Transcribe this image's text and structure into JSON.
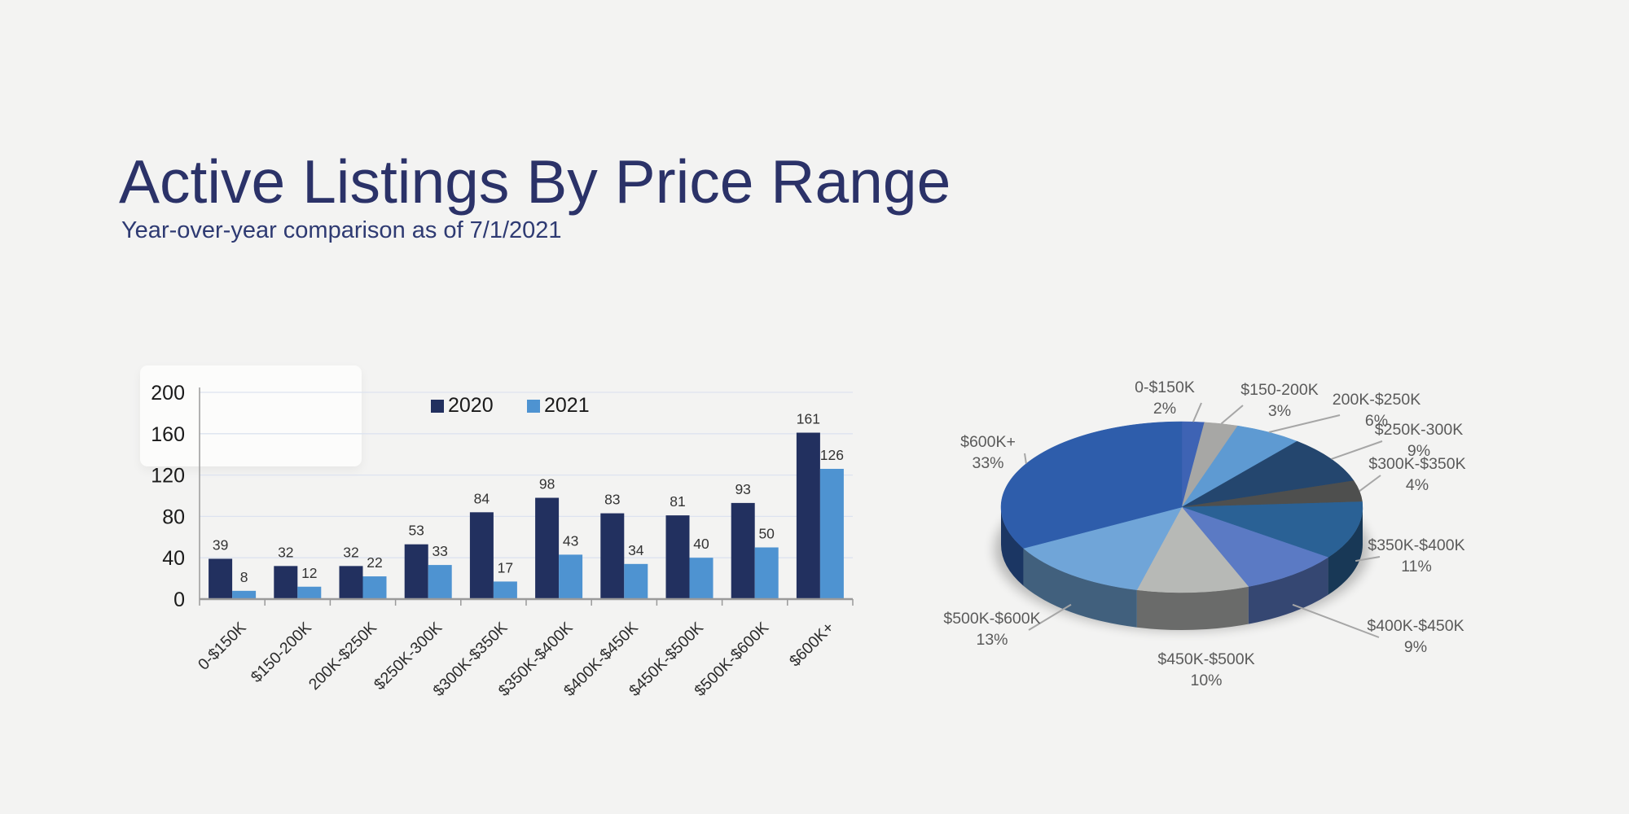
{
  "page": {
    "title": "Active Listings By Price Range",
    "subtitle": "Year-over-year comparison as of 7/1/2021",
    "background_color": "#f3f3f2",
    "title_color": "#2b3268"
  },
  "chart_data": [
    {
      "type": "bar",
      "categories": [
        "0-$150K",
        "$150-200K",
        "200K-$250K",
        "$250K-300K",
        "$300K-$350K",
        "$350K-$400K",
        "$400K-$450K",
        "$450K-$500K",
        "$500K-$600K",
        "$600K+"
      ],
      "series": [
        {
          "name": "2020",
          "color": "#22305f",
          "values": [
            39,
            32,
            32,
            53,
            84,
            98,
            83,
            81,
            93,
            161
          ]
        },
        {
          "name": "2021",
          "color": "#4e93d1",
          "values": [
            8,
            12,
            22,
            33,
            17,
            43,
            34,
            40,
            50,
            126
          ]
        }
      ],
      "xlabel": "",
      "ylabel": "",
      "ylim": [
        0,
        200
      ],
      "yticks": [
        0,
        40,
        80,
        120,
        160,
        200
      ],
      "grid": true,
      "value_labels": true,
      "legend_position": "top-center",
      "x_tick_rotation_deg": -45
    },
    {
      "type": "pie",
      "style": "3d",
      "start_angle_deg": 0,
      "direction": "clockwise",
      "labels": [
        "0-$150K",
        "$150-200K",
        "200K-$250K",
        "$250K-300K",
        "$300K-$350K",
        "$350K-$400K",
        "$400K-$450K",
        "$450K-$500K",
        "$500K-$600K",
        "$600K+"
      ],
      "values": [
        2,
        3,
        6,
        9,
        4,
        11,
        9,
        10,
        13,
        33
      ],
      "unit": "%",
      "colors": [
        "#3e63b4",
        "#a7a7a5",
        "#5e9ad2",
        "#24466e",
        "#4e4f4e",
        "#2a6195",
        "#5b7ac4",
        "#b7b9b6",
        "#70a5d8",
        "#2e5dab"
      ],
      "label_text_color": "#5a5a5a",
      "leader_line_color": "#a6a6a6"
    }
  ]
}
